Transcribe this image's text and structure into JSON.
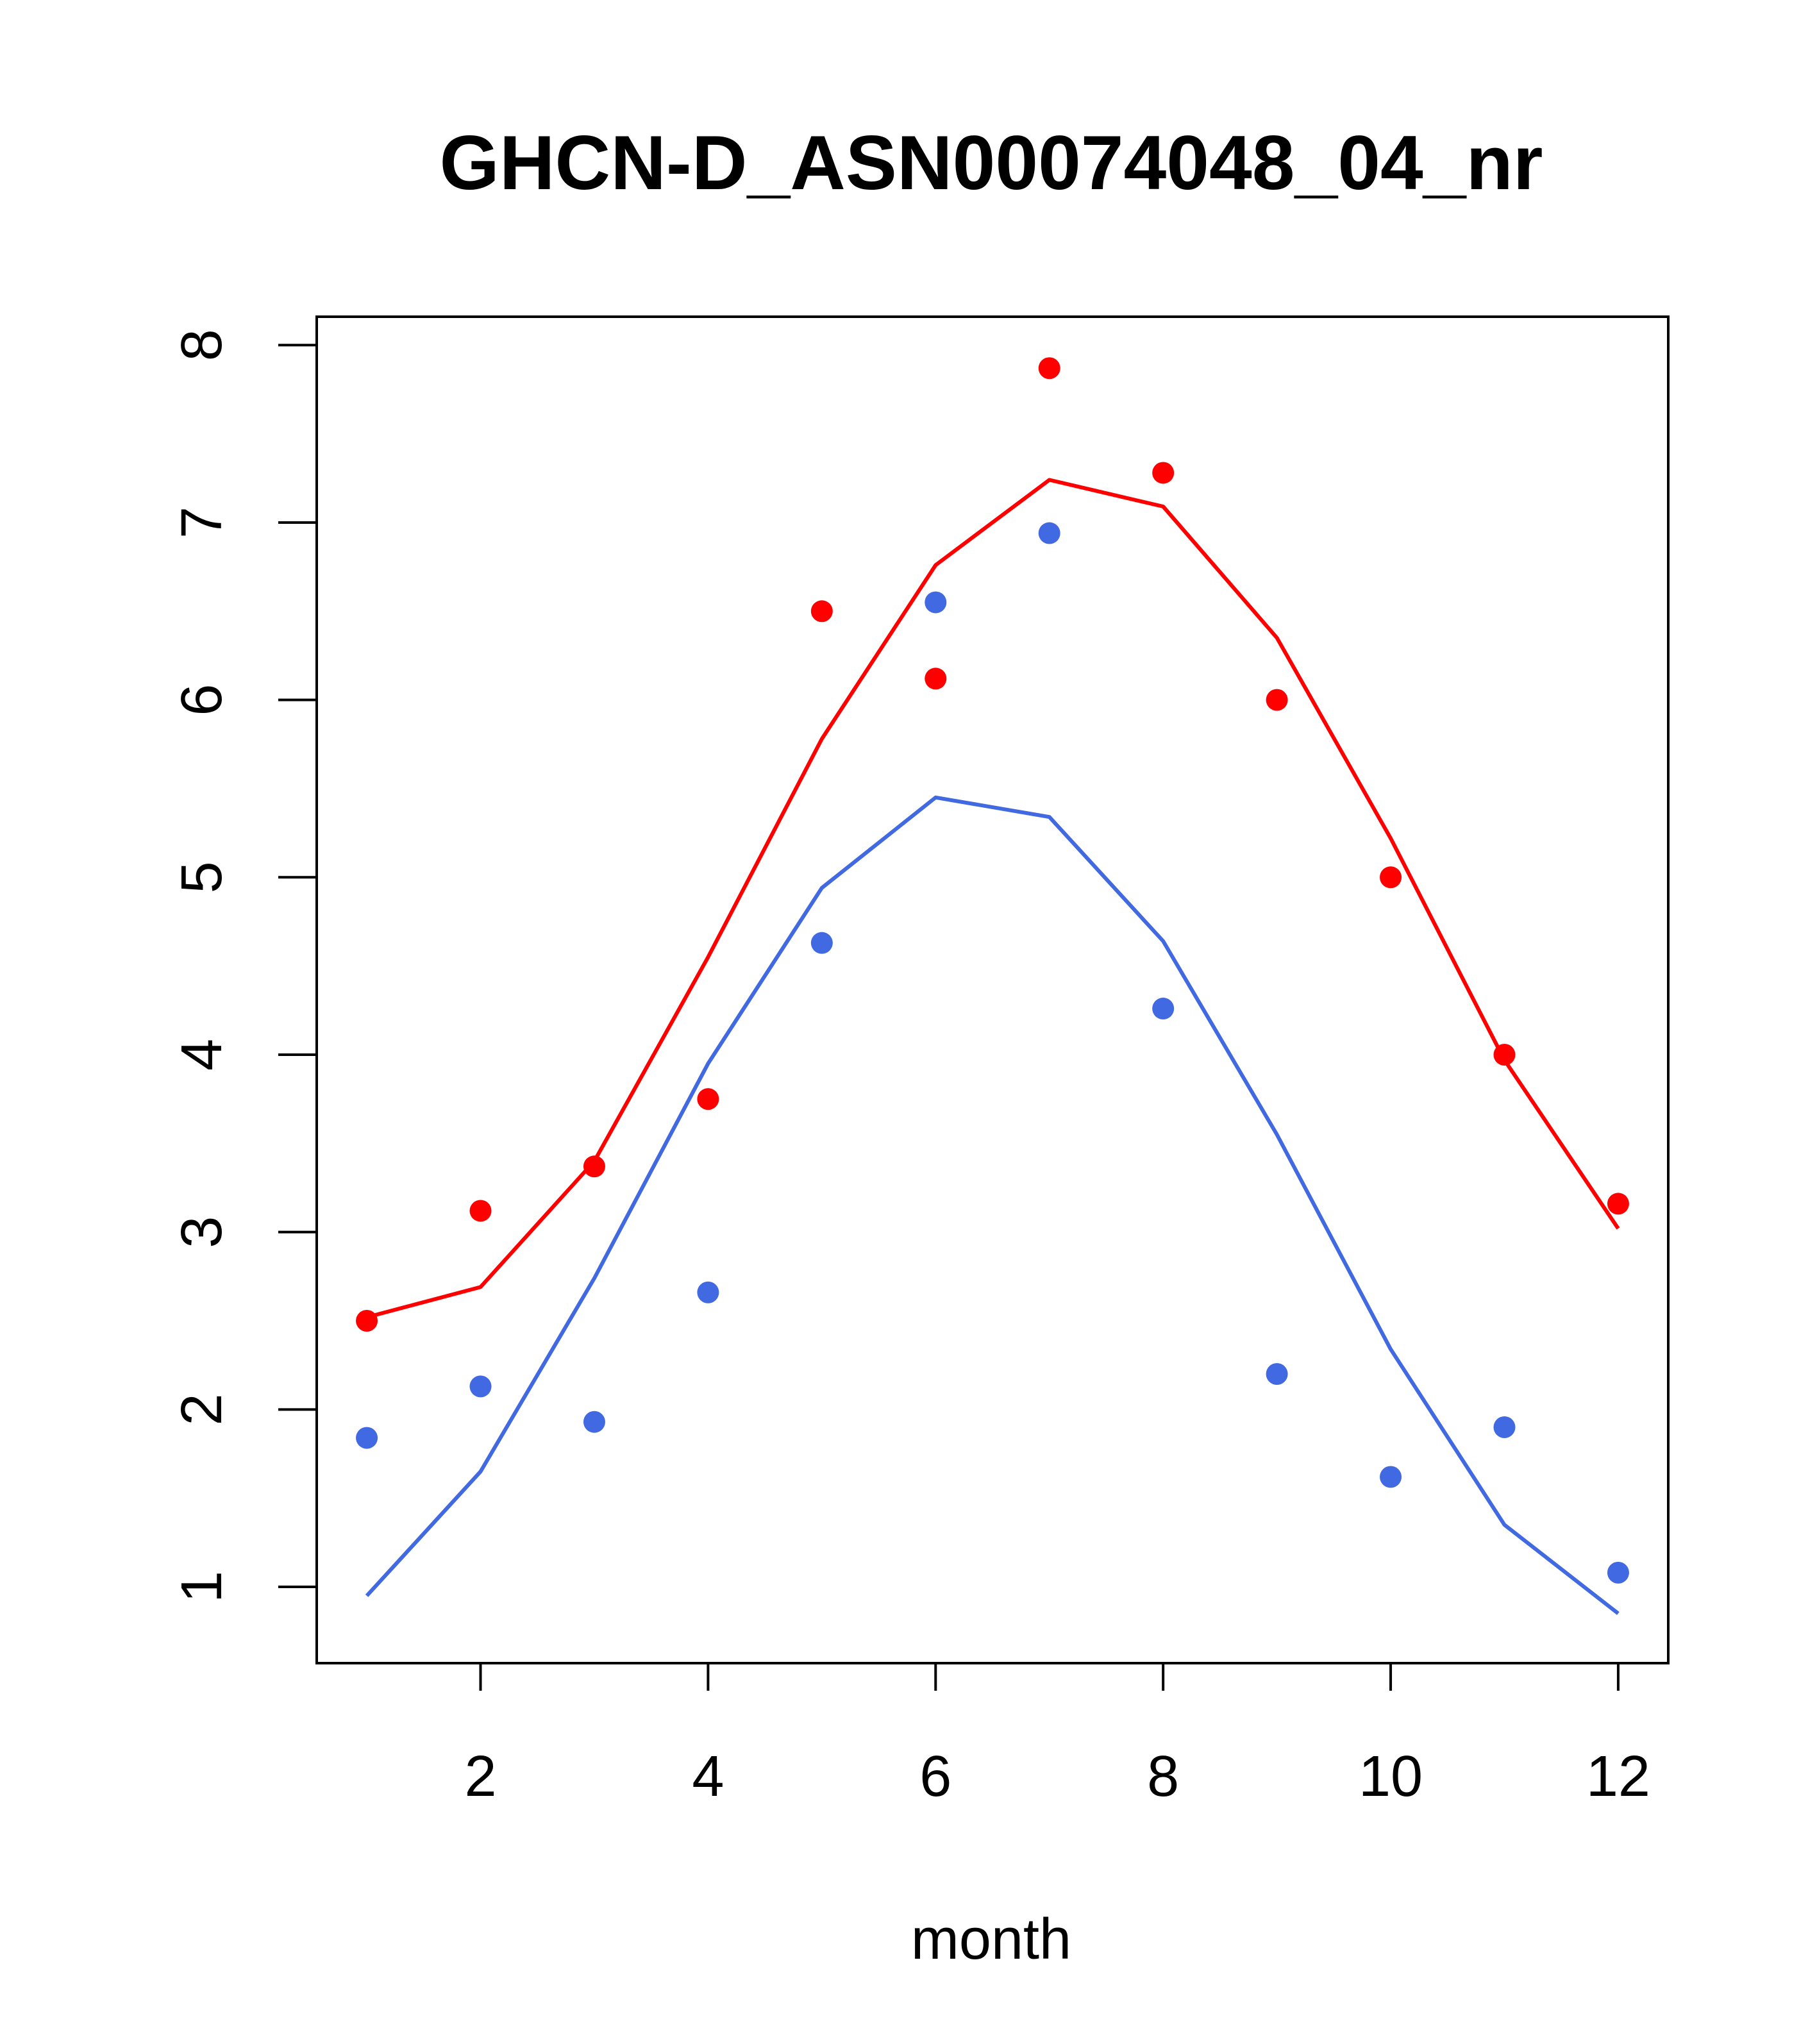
{
  "chart_data": {
    "type": "line",
    "title": "GHCN-D_ASN00074048_04_nr",
    "xlabel": "month",
    "ylabel": "",
    "xlim": [
      0.56,
      12.44
    ],
    "ylim": [
      0.57,
      8.16
    ],
    "x_ticks": [
      2,
      4,
      6,
      8,
      10,
      12
    ],
    "y_ticks": [
      1,
      2,
      3,
      4,
      5,
      6,
      7,
      8
    ],
    "grid": false,
    "series": [
      {
        "name": "red-points",
        "kind": "points",
        "color": "#ff0000",
        "x": [
          1,
          2,
          3,
          4,
          5,
          6,
          7,
          8,
          9,
          10,
          11,
          12
        ],
        "values": [
          2.5,
          3.12,
          3.37,
          3.75,
          6.5,
          6.12,
          7.87,
          7.28,
          6.0,
          5.0,
          4.0,
          3.16
        ]
      },
      {
        "name": "red-fit",
        "kind": "line",
        "color": "#ff0000",
        "x": [
          1,
          2,
          3,
          4,
          5,
          6,
          7,
          8,
          9,
          10,
          11,
          12
        ],
        "values": [
          2.52,
          2.69,
          3.4,
          4.55,
          5.78,
          6.76,
          7.24,
          7.09,
          6.35,
          5.22,
          3.97,
          3.02
        ]
      },
      {
        "name": "blue-points",
        "kind": "points",
        "color": "#4169e1",
        "x": [
          1,
          2,
          3,
          4,
          5,
          6,
          7,
          8,
          9,
          10,
          11,
          12
        ],
        "values": [
          1.84,
          2.13,
          1.93,
          2.66,
          4.63,
          6.55,
          6.94,
          4.26,
          2.2,
          1.62,
          1.9,
          1.08
        ]
      },
      {
        "name": "blue-fit",
        "kind": "line",
        "color": "#4169e1",
        "x": [
          1,
          2,
          3,
          4,
          5,
          6,
          7,
          8,
          9,
          10,
          11,
          12
        ],
        "values": [
          0.95,
          1.65,
          2.74,
          3.95,
          4.94,
          5.45,
          5.34,
          4.64,
          3.55,
          2.34,
          1.35,
          0.85
        ]
      }
    ]
  }
}
